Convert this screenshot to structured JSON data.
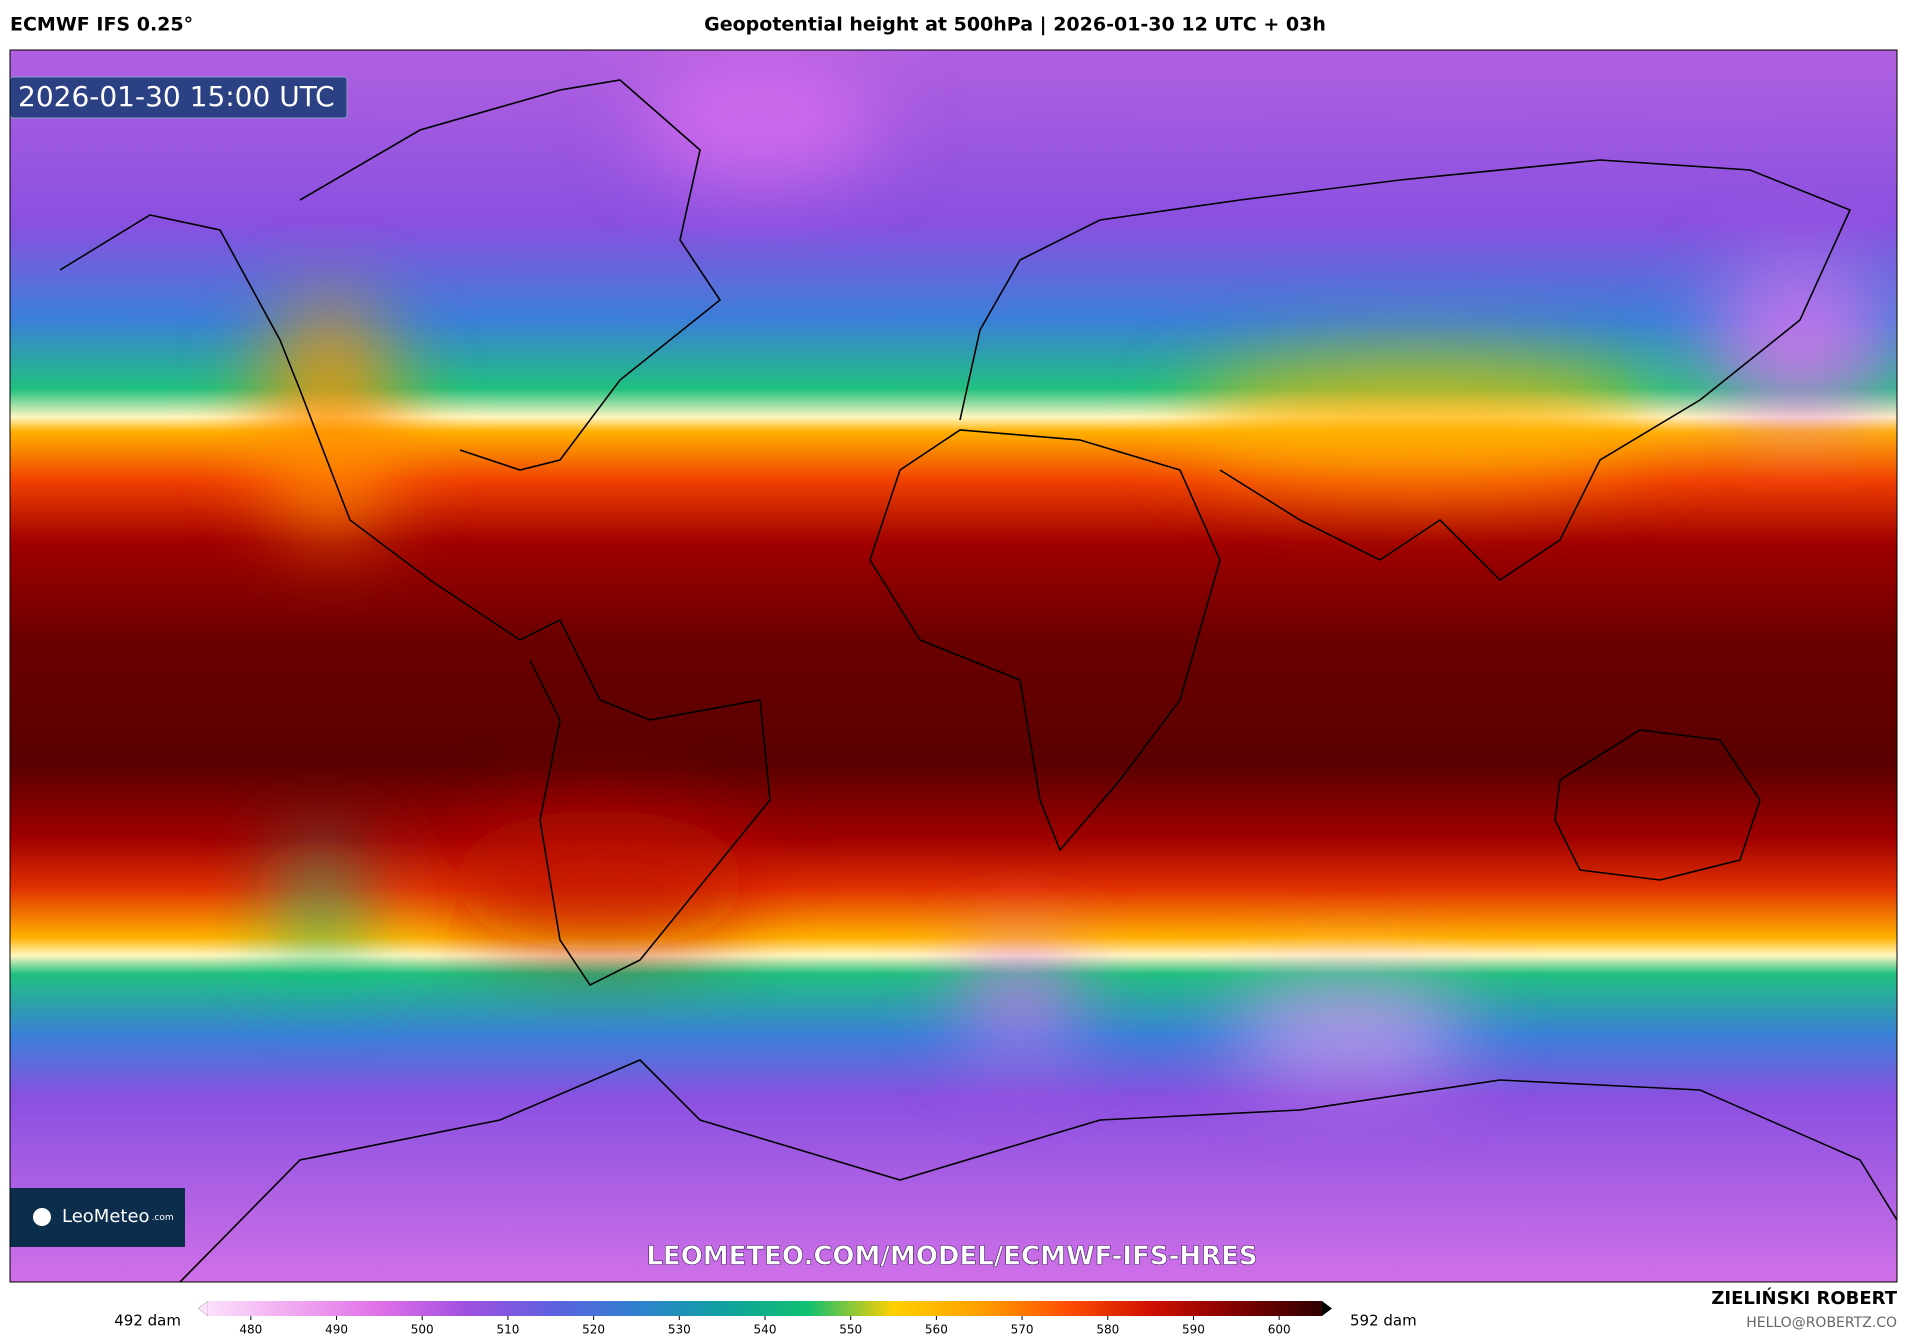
{
  "header": {
    "model": "ECMWF IFS 0.25°",
    "title": "Geopotential height at 500hPa | 2026-01-30 12 UTC + 03h"
  },
  "map": {
    "valid_time": "2026-01-30 15:00 UTC",
    "logo": "LeoMeteo",
    "logo_suffix": ".com",
    "url": "LEOMETEO.COM/MODEL/ECMWF-IFS-HRES"
  },
  "colorbar": {
    "min_label": "492 dam",
    "max_label": "592 dam",
    "lim": [
      475,
      605
    ],
    "ticks": [
      480,
      490,
      500,
      510,
      520,
      530,
      540,
      550,
      560,
      570,
      580,
      590,
      600
    ],
    "colors": [
      "#fbe0fb",
      "#f0a8f0",
      "#e070e8",
      "#a050e0",
      "#6060e0",
      "#3080d0",
      "#10a0a0",
      "#10c070",
      "#ffd000",
      "#ffa000",
      "#ff5000",
      "#d01000",
      "#800000",
      "#300000"
    ]
  },
  "footer": {
    "author": "ZIELIŃSKI ROBERT",
    "email": "HELLO@ROBERTZ.CO"
  }
}
